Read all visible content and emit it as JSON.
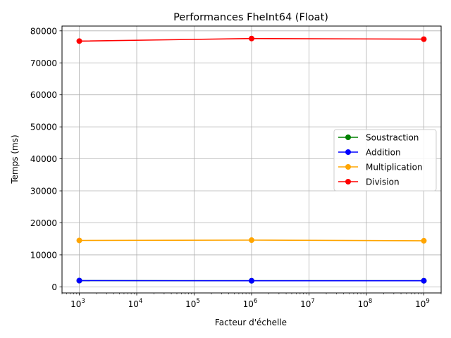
{
  "chart_data": {
    "type": "line",
    "title": "Performances FheInt64 (Float)",
    "xlabel": "Facteur d'échelle",
    "ylabel": "Temps (ms)",
    "xscale": "log",
    "xlim": [
      500,
      2000000000
    ],
    "ylim": [
      -1900,
      81500
    ],
    "x": [
      1000,
      1000000,
      1000000000
    ],
    "x_ticks": [
      {
        "value": 1000,
        "base": "10",
        "exp": "3"
      },
      {
        "value": 10000,
        "base": "10",
        "exp": "4"
      },
      {
        "value": 100000,
        "base": "10",
        "exp": "5"
      },
      {
        "value": 1000000,
        "base": "10",
        "exp": "6"
      },
      {
        "value": 10000000,
        "base": "10",
        "exp": "7"
      },
      {
        "value": 100000000,
        "base": "10",
        "exp": "8"
      },
      {
        "value": 1000000000,
        "base": "10",
        "exp": "9"
      }
    ],
    "y_ticks": [
      {
        "value": 0,
        "label": "0"
      },
      {
        "value": 10000,
        "label": "10000"
      },
      {
        "value": 20000,
        "label": "20000"
      },
      {
        "value": 30000,
        "label": "30000"
      },
      {
        "value": 40000,
        "label": "40000"
      },
      {
        "value": 50000,
        "label": "50000"
      },
      {
        "value": 60000,
        "label": "60000"
      },
      {
        "value": 70000,
        "label": "70000"
      },
      {
        "value": 80000,
        "label": "80000"
      }
    ],
    "grid": true,
    "legend_position": "center-right",
    "series": [
      {
        "name": "Soustraction",
        "color": "#008000",
        "marker": "circle",
        "values": [
          1950,
          1900,
          1900
        ]
      },
      {
        "name": "Addition",
        "color": "#0000ff",
        "marker": "circle",
        "values": [
          1950,
          1900,
          1900
        ]
      },
      {
        "name": "Multiplication",
        "color": "#ffa500",
        "marker": "circle",
        "values": [
          14500,
          14600,
          14400
        ]
      },
      {
        "name": "Division",
        "color": "#ff0000",
        "marker": "circle",
        "values": [
          76800,
          77600,
          77400
        ]
      }
    ]
  }
}
